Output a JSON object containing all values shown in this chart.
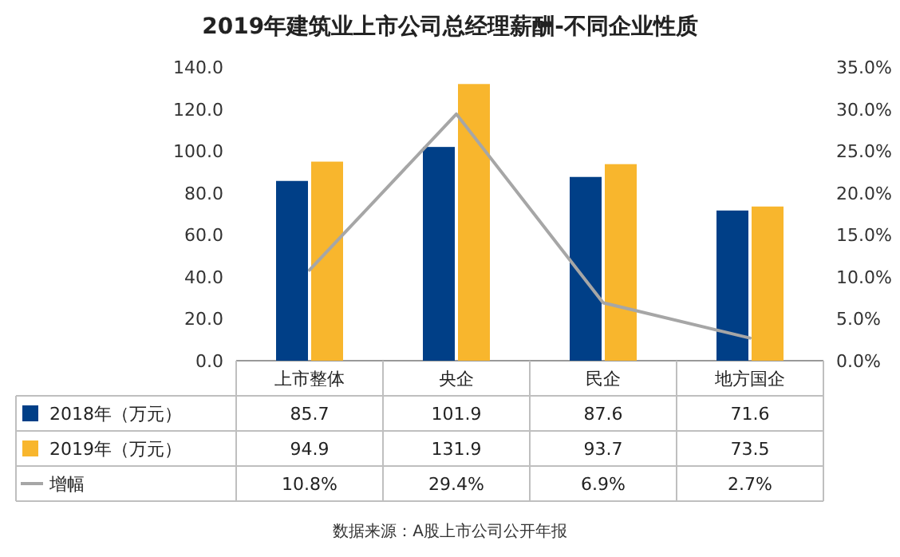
{
  "chart_data": {
    "type": "bar",
    "title": "2019年建筑业上市公司总经理薪酬-不同企业性质",
    "categories": [
      "上市整体",
      "央企",
      "民企",
      "地方国企"
    ],
    "series": [
      {
        "name": "2018年（万元）",
        "color": "#003f87",
        "values": [
          85.7,
          101.9,
          87.6,
          71.6
        ],
        "value_labels": [
          "85.7",
          "101.9",
          "87.6",
          "71.6"
        ]
      },
      {
        "name": "2019年（万元）",
        "color": "#f8b62d",
        "values": [
          94.9,
          131.9,
          93.7,
          73.5
        ],
        "value_labels": [
          "94.9",
          "131.9",
          "93.7",
          "73.5"
        ]
      },
      {
        "name": "增幅",
        "type": "line",
        "axis": "y2",
        "color": "#a6a6a6",
        "values": [
          10.8,
          29.4,
          6.9,
          2.7
        ],
        "value_labels": [
          "10.8%",
          "29.4%",
          "6.9%",
          "2.7%"
        ]
      }
    ],
    "ylim": [
      0,
      140
    ],
    "yticks": [
      {
        "value": 0,
        "label": "0.0"
      },
      {
        "value": 20,
        "label": "20.0"
      },
      {
        "value": 40,
        "label": "40.0"
      },
      {
        "value": 60,
        "label": "60.0"
      },
      {
        "value": 80,
        "label": "80.0"
      },
      {
        "value": 100,
        "label": "100.0"
      },
      {
        "value": 120,
        "label": "120.0"
      },
      {
        "value": 140,
        "label": "140.0"
      }
    ],
    "y2lim": [
      0,
      35
    ],
    "y2ticks": [
      {
        "value": 0,
        "label": "0.0%"
      },
      {
        "value": 5,
        "label": "5.0%"
      },
      {
        "value": 10,
        "label": "10.0%"
      },
      {
        "value": 15,
        "label": "15.0%"
      },
      {
        "value": 20,
        "label": "20.0%"
      },
      {
        "value": 25,
        "label": "25.0%"
      },
      {
        "value": 30,
        "label": "30.0%"
      },
      {
        "value": 35,
        "label": "35.0%"
      }
    ],
    "legend": "bottom",
    "marker": "none",
    "annotations": [
      "数据来源：A股上市公司公开年报"
    ]
  }
}
